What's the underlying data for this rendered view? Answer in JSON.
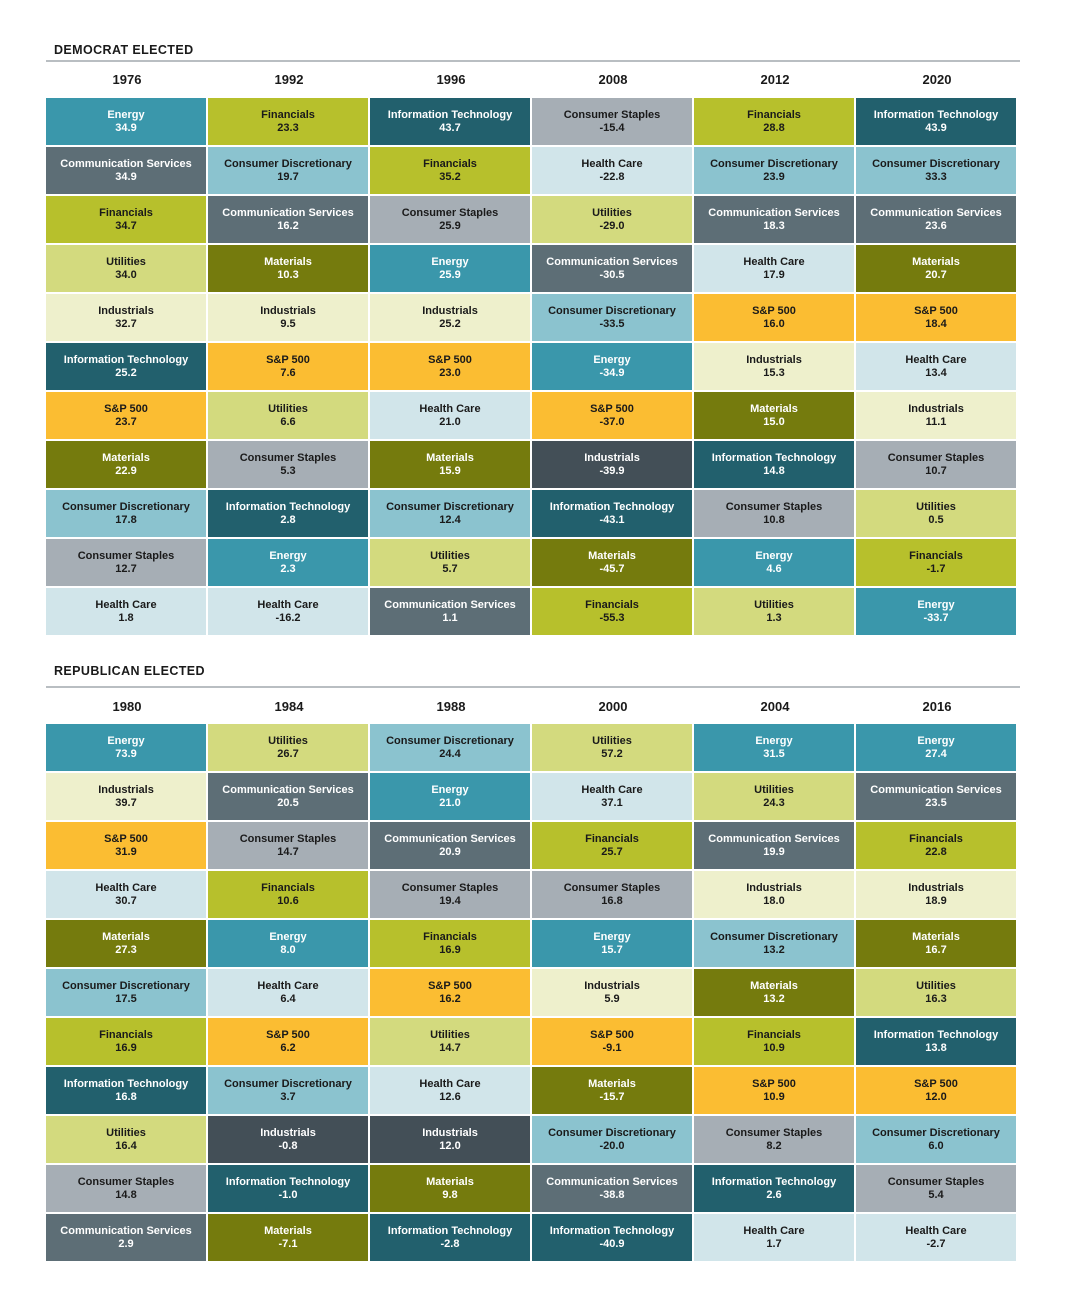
{
  "colors": {
    "Energy": "#3a97ab",
    "Communication Services": "#5d6e76",
    "Financials": "#b7c02c",
    "Utilities": "#d3da7e",
    "Industrials": "#eef0cc",
    "Information Technology": "#22606d",
    "S&P 500": "#fbbd32",
    "Materials": "#757b0d",
    "Consumer Discretionary": "#8bc3cf",
    "Consumer Staples": "#a6aeb5",
    "Health Care": "#d1e5ea",
    "Industrials_dark": "#434f57"
  },
  "chart_data": [
    {
      "type": "table",
      "title": "DEMOCRAT ELECTED",
      "columns": [
        {
          "year": "1976",
          "cells": [
            {
              "sector": "Energy",
              "value": "34.9"
            },
            {
              "sector": "Communication Services",
              "value": "34.9"
            },
            {
              "sector": "Financials",
              "value": "34.7"
            },
            {
              "sector": "Utilities",
              "value": "34.0"
            },
            {
              "sector": "Industrials",
              "value": "32.7"
            },
            {
              "sector": "Information Technology",
              "value": "25.2"
            },
            {
              "sector": "S&P 500",
              "value": "23.7"
            },
            {
              "sector": "Materials",
              "value": "22.9"
            },
            {
              "sector": "Consumer Discretionary",
              "value": "17.8"
            },
            {
              "sector": "Consumer Staples",
              "value": "12.7"
            },
            {
              "sector": "Health Care",
              "value": "1.8"
            }
          ]
        },
        {
          "year": "1992",
          "cells": [
            {
              "sector": "Financials",
              "value": "23.3"
            },
            {
              "sector": "Consumer Discretionary",
              "value": "19.7"
            },
            {
              "sector": "Communication Services",
              "value": "16.2"
            },
            {
              "sector": "Materials",
              "value": "10.3"
            },
            {
              "sector": "Industrials",
              "value": "9.5"
            },
            {
              "sector": "S&P 500",
              "value": "7.6"
            },
            {
              "sector": "Utilities",
              "value": "6.6"
            },
            {
              "sector": "Consumer Staples",
              "value": "5.3"
            },
            {
              "sector": "Information Technology",
              "value": "2.8"
            },
            {
              "sector": "Energy",
              "value": "2.3"
            },
            {
              "sector": "Health Care",
              "value": "-16.2"
            }
          ]
        },
        {
          "year": "1996",
          "cells": [
            {
              "sector": "Information Technology",
              "value": "43.7"
            },
            {
              "sector": "Financials",
              "value": "35.2"
            },
            {
              "sector": "Consumer Staples",
              "value": "25.9"
            },
            {
              "sector": "Energy",
              "value": "25.9"
            },
            {
              "sector": "Industrials",
              "value": "25.2"
            },
            {
              "sector": "S&P 500",
              "value": "23.0"
            },
            {
              "sector": "Health Care",
              "value": "21.0"
            },
            {
              "sector": "Materials",
              "value": "15.9"
            },
            {
              "sector": "Consumer Discretionary",
              "value": "12.4"
            },
            {
              "sector": "Utilities",
              "value": "5.7"
            },
            {
              "sector": "Communication Services",
              "value": "1.1"
            }
          ]
        },
        {
          "year": "2008",
          "cells": [
            {
              "sector": "Consumer Staples",
              "value": "-15.4"
            },
            {
              "sector": "Health Care",
              "value": "-22.8"
            },
            {
              "sector": "Utilities",
              "value": "-29.0"
            },
            {
              "sector": "Communication Services",
              "value": "-30.5"
            },
            {
              "sector": "Consumer Discretionary",
              "value": "-33.5"
            },
            {
              "sector": "Energy",
              "value": "-34.9"
            },
            {
              "sector": "S&P 500",
              "value": "-37.0"
            },
            {
              "sector": "Industrials",
              "value": "-39.9",
              "dark": true
            },
            {
              "sector": "Information Technology",
              "value": "-43.1"
            },
            {
              "sector": "Materials",
              "value": "-45.7"
            },
            {
              "sector": "Financials",
              "value": "-55.3"
            }
          ]
        },
        {
          "year": "2012",
          "cells": [
            {
              "sector": "Financials",
              "value": "28.8"
            },
            {
              "sector": "Consumer Discretionary",
              "value": "23.9"
            },
            {
              "sector": "Communication Services",
              "value": "18.3"
            },
            {
              "sector": "Health Care",
              "value": "17.9"
            },
            {
              "sector": "S&P 500",
              "value": "16.0"
            },
            {
              "sector": "Industrials",
              "value": "15.3"
            },
            {
              "sector": "Materials",
              "value": "15.0"
            },
            {
              "sector": "Information Technology",
              "value": "14.8"
            },
            {
              "sector": "Consumer Staples",
              "value": "10.8"
            },
            {
              "sector": "Energy",
              "value": "4.6"
            },
            {
              "sector": "Utilities",
              "value": "1.3"
            }
          ]
        },
        {
          "year": "2020",
          "cells": [
            {
              "sector": "Information Technology",
              "value": "43.9"
            },
            {
              "sector": "Consumer Discretionary",
              "value": "33.3"
            },
            {
              "sector": "Communication Services",
              "value": "23.6"
            },
            {
              "sector": "Materials",
              "value": "20.7"
            },
            {
              "sector": "S&P 500",
              "value": "18.4"
            },
            {
              "sector": "Health Care",
              "value": "13.4"
            },
            {
              "sector": "Industrials",
              "value": "11.1"
            },
            {
              "sector": "Consumer Staples",
              "value": "10.7"
            },
            {
              "sector": "Utilities",
              "value": "0.5"
            },
            {
              "sector": "Financials",
              "value": "-1.7"
            },
            {
              "sector": "Energy",
              "value": "-33.7"
            }
          ]
        }
      ]
    },
    {
      "type": "table",
      "title": "REPUBLICAN ELECTED",
      "columns": [
        {
          "year": "1980",
          "cells": [
            {
              "sector": "Energy",
              "value": "73.9"
            },
            {
              "sector": "Industrials",
              "value": "39.7"
            },
            {
              "sector": "S&P 500",
              "value": "31.9"
            },
            {
              "sector": "Health Care",
              "value": "30.7"
            },
            {
              "sector": "Materials",
              "value": "27.3"
            },
            {
              "sector": "Consumer Discretionary",
              "value": "17.5"
            },
            {
              "sector": "Financials",
              "value": "16.9"
            },
            {
              "sector": "Information Technology",
              "value": "16.8"
            },
            {
              "sector": "Utilities",
              "value": "16.4"
            },
            {
              "sector": "Consumer Staples",
              "value": "14.8"
            },
            {
              "sector": "Communication Services",
              "value": "2.9"
            }
          ]
        },
        {
          "year": "1984",
          "cells": [
            {
              "sector": "Utilities",
              "value": "26.7"
            },
            {
              "sector": "Communication Services",
              "value": "20.5"
            },
            {
              "sector": "Consumer Staples",
              "value": "14.7"
            },
            {
              "sector": "Financials",
              "value": "10.6"
            },
            {
              "sector": "Energy",
              "value": "8.0"
            },
            {
              "sector": "Health Care",
              "value": "6.4"
            },
            {
              "sector": "S&P 500",
              "value": "6.2"
            },
            {
              "sector": "Consumer Discretionary",
              "value": "3.7"
            },
            {
              "sector": "Industrials",
              "value": "-0.8",
              "dark": true
            },
            {
              "sector": "Information Technology",
              "value": "-1.0"
            },
            {
              "sector": "Materials",
              "value": "-7.1"
            }
          ]
        },
        {
          "year": "1988",
          "cells": [
            {
              "sector": "Consumer Discretionary",
              "value": "24.4"
            },
            {
              "sector": "Energy",
              "value": "21.0"
            },
            {
              "sector": "Communication Services",
              "value": "20.9"
            },
            {
              "sector": "Consumer Staples",
              "value": "19.4"
            },
            {
              "sector": "Financials",
              "value": "16.9"
            },
            {
              "sector": "S&P 500",
              "value": "16.2"
            },
            {
              "sector": "Utilities",
              "value": "14.7"
            },
            {
              "sector": "Health Care",
              "value": "12.6"
            },
            {
              "sector": "Industrials",
              "value": "12.0",
              "dark": true
            },
            {
              "sector": "Materials",
              "value": "9.8"
            },
            {
              "sector": "Information Technology",
              "value": "-2.8"
            }
          ]
        },
        {
          "year": "2000",
          "cells": [
            {
              "sector": "Utilities",
              "value": "57.2"
            },
            {
              "sector": "Health Care",
              "value": "37.1"
            },
            {
              "sector": "Financials",
              "value": "25.7"
            },
            {
              "sector": "Consumer Staples",
              "value": "16.8"
            },
            {
              "sector": "Energy",
              "value": "15.7"
            },
            {
              "sector": "Industrials",
              "value": "5.9"
            },
            {
              "sector": "S&P 500",
              "value": "-9.1"
            },
            {
              "sector": "Materials",
              "value": "-15.7"
            },
            {
              "sector": "Consumer Discretionary",
              "value": "-20.0"
            },
            {
              "sector": "Communication Services",
              "value": "-38.8"
            },
            {
              "sector": "Information Technology",
              "value": "-40.9"
            }
          ]
        },
        {
          "year": "2004",
          "cells": [
            {
              "sector": "Energy",
              "value": "31.5"
            },
            {
              "sector": "Utilities",
              "value": "24.3"
            },
            {
              "sector": "Communication Services",
              "value": "19.9"
            },
            {
              "sector": "Industrials",
              "value": "18.0"
            },
            {
              "sector": "Consumer Discretionary",
              "value": "13.2"
            },
            {
              "sector": "Materials",
              "value": "13.2"
            },
            {
              "sector": "Financials",
              "value": "10.9"
            },
            {
              "sector": "S&P 500",
              "value": "10.9"
            },
            {
              "sector": "Consumer Staples",
              "value": "8.2"
            },
            {
              "sector": "Information Technology",
              "value": "2.6"
            },
            {
              "sector": "Health Care",
              "value": "1.7"
            }
          ]
        },
        {
          "year": "2016",
          "cells": [
            {
              "sector": "Energy",
              "value": "27.4"
            },
            {
              "sector": "Communication Services",
              "value": "23.5"
            },
            {
              "sector": "Financials",
              "value": "22.8"
            },
            {
              "sector": "Industrials",
              "value": "18.9"
            },
            {
              "sector": "Materials",
              "value": "16.7"
            },
            {
              "sector": "Utilities",
              "value": "16.3"
            },
            {
              "sector": "Information Technology",
              "value": "13.8"
            },
            {
              "sector": "S&P 500",
              "value": "12.0"
            },
            {
              "sector": "Consumer Discretionary",
              "value": "6.0"
            },
            {
              "sector": "Consumer Staples",
              "value": "5.4"
            },
            {
              "sector": "Health Care",
              "value": "-2.7"
            }
          ]
        }
      ]
    }
  ]
}
